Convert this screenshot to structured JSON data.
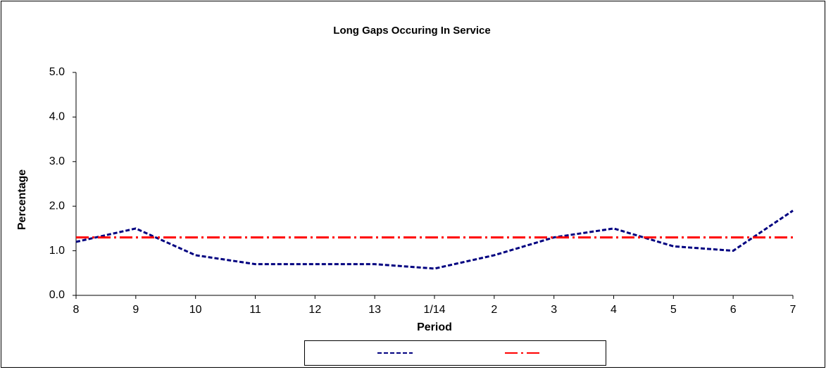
{
  "chart_data": {
    "type": "line",
    "title": "Long Gaps Occuring In Service",
    "x_label": "Period",
    "y_label": "Percentage",
    "categories": [
      "8",
      "9",
      "10",
      "11",
      "12",
      "13",
      "1/14",
      "2",
      "3",
      "4",
      "5",
      "6",
      "7"
    ],
    "series": [
      {
        "color": "#000080",
        "dash": "6,3",
        "values": [
          1.2,
          1.5,
          0.9,
          0.7,
          0.7,
          0.7,
          0.6,
          0.9,
          1.3,
          1.5,
          1.1,
          1.0,
          1.9
        ]
      },
      {
        "color": "#ff0000",
        "dash": "18,5,3,5",
        "values": [
          1.3,
          1.3,
          1.3,
          1.3,
          1.3,
          1.3,
          1.3,
          1.3,
          1.3,
          1.3,
          1.3,
          1.3,
          1.3
        ]
      }
    ],
    "ylim": [
      0,
      5
    ],
    "yticks": [
      {
        "value": 0,
        "label": "0.0"
      },
      {
        "value": 1,
        "label": "1.0"
      },
      {
        "value": 2,
        "label": "2.0"
      },
      {
        "value": 3,
        "label": "3.0"
      },
      {
        "value": 4,
        "label": "4.0"
      },
      {
        "value": 5,
        "label": "5.0"
      }
    ],
    "legend": "bottom"
  }
}
